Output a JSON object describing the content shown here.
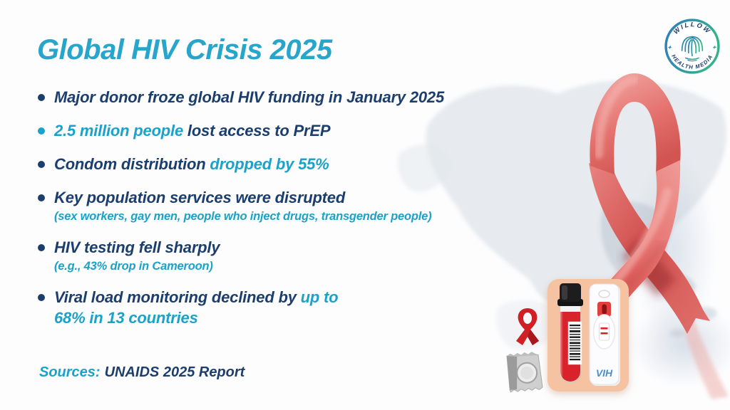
{
  "header": {
    "title": "Global HIV Crisis 2025"
  },
  "logo": {
    "arc_top": "WILLOW",
    "arc_bottom": "HEALTH MEDIA"
  },
  "bullets": {
    "items": [
      {
        "dot": "navy",
        "segments": [
          {
            "style": "navy",
            "text": "Major donor froze global HIV funding in January 2025"
          }
        ]
      },
      {
        "dot": "cyan",
        "segments": [
          {
            "style": "cyan",
            "text": "2.5 million people "
          },
          {
            "style": "navy",
            "text": "lost access to PrEP"
          }
        ]
      },
      {
        "dot": "navy",
        "segments": [
          {
            "style": "navy",
            "text": "Condom distribution "
          },
          {
            "style": "cyan",
            "text": "dropped by 55%"
          }
        ]
      },
      {
        "dot": "navy",
        "segments": [
          {
            "style": "navy",
            "text": "Key population services were disrupted"
          }
        ],
        "sub": "(sex workers, gay men, people who inject drugs, transgender people)"
      },
      {
        "dot": "navy",
        "segments": [
          {
            "style": "navy",
            "text": "HIV testing fell sharply"
          }
        ],
        "sub": "(e.g., 43% drop in Cameroon)"
      },
      {
        "dot": "navy",
        "extra_gap": true,
        "segments": [
          {
            "style": "navy",
            "text": "Viral load monitoring declined by "
          },
          {
            "style": "cyan",
            "text": "up to"
          },
          {
            "br": true
          },
          {
            "style": "cyan",
            "text": "68% in 13 countries"
          }
        ]
      }
    ]
  },
  "sources": {
    "label": "Sources:",
    "text": "UNAIDS 2025 Report"
  },
  "illustration": {
    "test_cassette_label": "VIH"
  },
  "colors": {
    "title_cyan": "#28a5cb",
    "accent_cyan": "#1ba2c9",
    "navy": "#1c3e6d",
    "ribbon_red": "#d9534f",
    "card_peach": "#f5c3a1",
    "tube_red": "#d8232a",
    "vih_blue": "#4a90c8"
  }
}
